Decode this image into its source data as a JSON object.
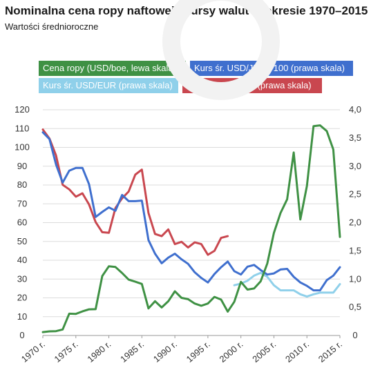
{
  "chart_data": {
    "type": "line",
    "title": "Nominalna cena ropy naftowej i kursy walut w okresie 1970–2015",
    "subtitle": "Wartości średnioroczne",
    "x_ticks": [
      "1970 r.",
      "1975 r.",
      "1980 r.",
      "1985 r.",
      "1990 r.",
      "1995 r.",
      "2000 r.",
      "2005 r.",
      "2010 r.",
      "2015 r."
    ],
    "x_range": [
      1970,
      2015
    ],
    "left_axis": {
      "range": [
        0,
        120
      ],
      "ticks": [
        "0",
        "10",
        "20",
        "30",
        "40",
        "50",
        "60",
        "70",
        "80",
        "90",
        "100",
        "110",
        "120"
      ]
    },
    "right_axis": {
      "range": [
        0,
        4
      ],
      "ticks": [
        "0",
        "0,5",
        "1,0",
        "1,5",
        "2,0",
        "2,5",
        "3,0",
        "3,5",
        "4,0"
      ]
    },
    "grid": true,
    "legend_placement": "top",
    "series": [
      {
        "name": "Cena ropy (USD/boe, lewa skala)",
        "color": "#3f9144",
        "axis": "left",
        "x": [
          1970,
          1971,
          1972,
          1973,
          1974,
          1975,
          1976,
          1977,
          1978,
          1979,
          1980,
          1981,
          1982,
          1983,
          1984,
          1985,
          1986,
          1987,
          1988,
          1989,
          1990,
          1991,
          1992,
          1993,
          1994,
          1995,
          1996,
          1997,
          1998,
          1999,
          2000,
          2001,
          2002,
          2003,
          2004,
          2005,
          2006,
          2007,
          2008,
          2009,
          2010,
          2011,
          2012,
          2013,
          2014,
          2015
        ],
        "values": [
          1.8,
          2.2,
          2.3,
          3.2,
          11.6,
          11.5,
          12.8,
          13.9,
          14.0,
          31.6,
          36.8,
          36.4,
          33.2,
          29.7,
          28.6,
          27.4,
          14.4,
          18.2,
          14.9,
          18.2,
          23.5,
          20.0,
          19.3,
          17.0,
          15.8,
          17.0,
          20.5,
          19.1,
          12.7,
          17.9,
          28.5,
          24.4,
          25.0,
          28.8,
          38.3,
          54.5,
          65.1,
          72.4,
          97.3,
          61.7,
          79.5,
          111.3,
          111.7,
          108.7,
          98.9,
          52.4
        ]
      },
      {
        "name": "Kurs śr. USD/JPY * 100 (prawa skala)",
        "color": "#3f6fce",
        "axis": "right",
        "x": [
          1970,
          1971,
          1972,
          1973,
          1974,
          1975,
          1976,
          1977,
          1978,
          1979,
          1980,
          1981,
          1982,
          1983,
          1984,
          1985,
          1986,
          1987,
          1988,
          1989,
          1990,
          1991,
          1992,
          1993,
          1994,
          1995,
          1996,
          1997,
          1998,
          1999,
          2000,
          2001,
          2002,
          2003,
          2004,
          2005,
          2006,
          2007,
          2008,
          2009,
          2010,
          2011,
          2012,
          2013,
          2014,
          2015
        ],
        "values": [
          3.6,
          3.48,
          3.03,
          2.71,
          2.92,
          2.97,
          2.97,
          2.68,
          2.1,
          2.19,
          2.27,
          2.21,
          2.49,
          2.38,
          2.38,
          2.39,
          1.69,
          1.45,
          1.28,
          1.38,
          1.45,
          1.35,
          1.27,
          1.12,
          1.02,
          0.94,
          1.09,
          1.21,
          1.31,
          1.14,
          1.08,
          1.22,
          1.25,
          1.16,
          1.08,
          1.1,
          1.17,
          1.18,
          1.04,
          0.94,
          0.88,
          0.8,
          0.8,
          0.98,
          1.06,
          1.21
        ]
      },
      {
        "name": "Kurs śr. USD/EUR (prawa skala)",
        "color": "#8fd0ea",
        "axis": "right",
        "x": [
          1999,
          2000,
          2001,
          2002,
          2003,
          2004,
          2005,
          2006,
          2007,
          2008,
          2009,
          2010,
          2011,
          2012,
          2013,
          2014,
          2015
        ],
        "values": [
          0.89,
          0.92,
          0.97,
          1.06,
          1.11,
          1.04,
          0.89,
          0.8,
          0.8,
          0.8,
          0.73,
          0.69,
          0.73,
          0.76,
          0.76,
          0.76,
          0.91
        ]
      },
      {
        "name": "Kurs śr. USD/DM (prawa skala)",
        "color": "#c9474f",
        "axis": "right",
        "x": [
          1970,
          1971,
          1972,
          1973,
          1974,
          1975,
          1976,
          1977,
          1978,
          1979,
          1980,
          1981,
          1982,
          1983,
          1984,
          1985,
          1986,
          1987,
          1988,
          1989,
          1990,
          1991,
          1992,
          1993,
          1994,
          1995,
          1996,
          1997,
          1998
        ],
        "values": [
          3.65,
          3.49,
          3.19,
          2.67,
          2.59,
          2.46,
          2.52,
          2.32,
          2.01,
          1.83,
          1.82,
          2.26,
          2.43,
          2.55,
          2.85,
          2.94,
          2.17,
          1.8,
          1.76,
          1.88,
          1.62,
          1.66,
          1.56,
          1.65,
          1.62,
          1.43,
          1.5,
          1.73,
          1.76
        ]
      }
    ]
  }
}
